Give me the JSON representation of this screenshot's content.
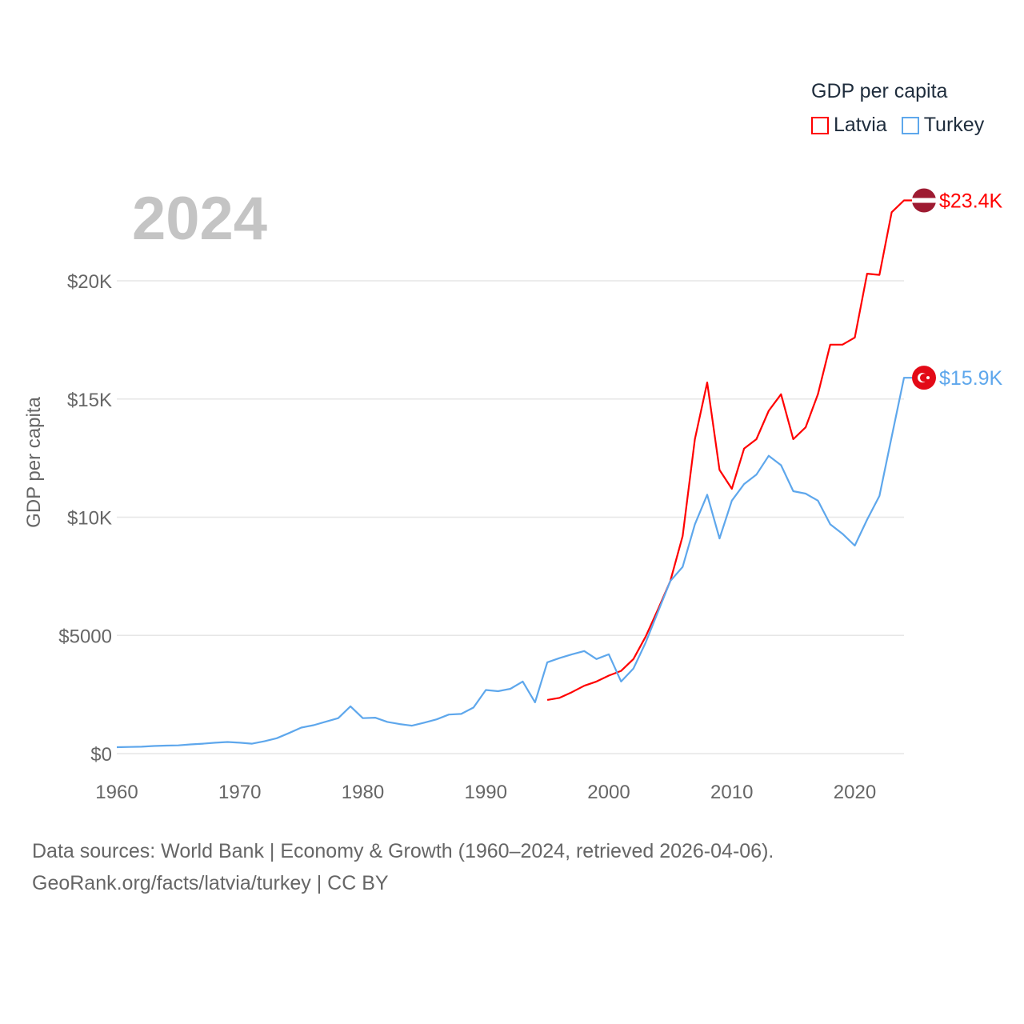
{
  "chart_data": {
    "type": "line",
    "title": "GDP per capita",
    "year_label": "2024",
    "ylabel": "GDP per capita",
    "xlabel": "",
    "xlim": [
      1960,
      2024
    ],
    "ylim": [
      0,
      24000
    ],
    "grid": true,
    "legend_position": "top-right",
    "x_ticks": [
      1960,
      1970,
      1980,
      1990,
      2000,
      2010,
      2020
    ],
    "x_tick_labels": [
      "1960",
      "1970",
      "1980",
      "1990",
      "2000",
      "2010",
      "2020"
    ],
    "y_ticks": [
      0,
      5000,
      10000,
      15000,
      20000
    ],
    "y_tick_labels": [
      "$0",
      "$5000",
      "$10K",
      "$15K",
      "$20K"
    ],
    "series": [
      {
        "name": "Latvia",
        "color": "#ff0000",
        "end_label": "$23.4K",
        "start_year": 1995,
        "values": [
          2270,
          2360,
          2600,
          2870,
          3050,
          3300,
          3500,
          4000,
          4950,
          6100,
          7300,
          9200,
          13300,
          15700,
          12000,
          11200,
          12900,
          13300,
          14500,
          15200,
          13300,
          13800,
          15200,
          17300,
          17300,
          17600,
          20300,
          20250,
          22900,
          23400
        ]
      },
      {
        "name": "Turkey",
        "color": "#5ea7ec",
        "end_label": "$15.9K",
        "start_year": 1960,
        "values": [
          270,
          280,
          290,
          320,
          340,
          350,
          390,
          420,
          460,
          490,
          460,
          420,
          520,
          650,
          870,
          1100,
          1200,
          1350,
          1500,
          2000,
          1500,
          1520,
          1340,
          1250,
          1180,
          1310,
          1450,
          1650,
          1680,
          1950,
          2690,
          2640,
          2740,
          3050,
          2170,
          3860,
          4040,
          4200,
          4340,
          4000,
          4200,
          3050,
          3600,
          4700,
          6000,
          7300,
          7900,
          9700,
          10950,
          9100,
          10700,
          11400,
          11800,
          12600,
          12200,
          11100,
          11000,
          10700,
          9700,
          9300,
          8800,
          9900,
          10900,
          13400,
          15900
        ]
      }
    ]
  },
  "footer": {
    "line1": "Data sources: World Bank | Economy & Growth (1960–2024, retrieved 2026-04-06).",
    "line2": "GeoRank.org/facts/latvia/turkey | CC BY"
  }
}
